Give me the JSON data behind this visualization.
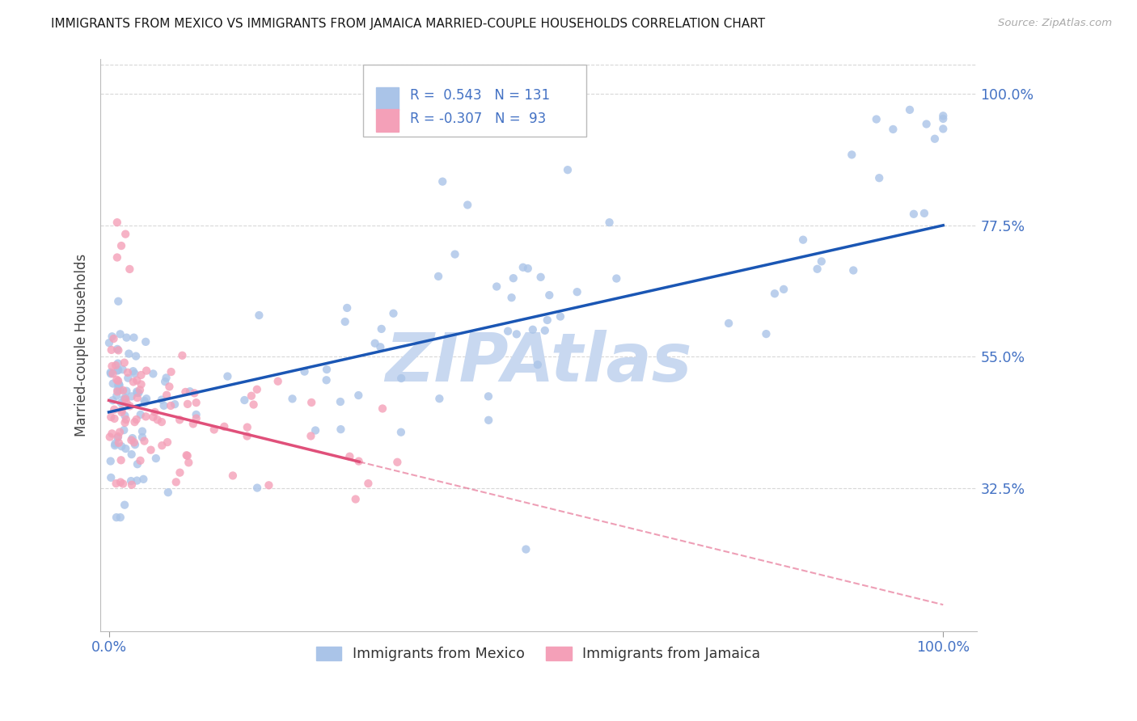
{
  "title": "IMMIGRANTS FROM MEXICO VS IMMIGRANTS FROM JAMAICA MARRIED-COUPLE HOUSEHOLDS CORRELATION CHART",
  "source": "Source: ZipAtlas.com",
  "ylabel": "Married-couple Households",
  "ytick_labels": [
    "100.0%",
    "77.5%",
    "55.0%",
    "32.5%"
  ],
  "ytick_values": [
    1.0,
    0.775,
    0.55,
    0.325
  ],
  "xtick_labels": [
    "0.0%",
    "100.0%"
  ],
  "xtick_values": [
    0.0,
    1.0
  ],
  "xlim": [
    -0.01,
    1.04
  ],
  "ylim": [
    0.08,
    1.06
  ],
  "r_mexico": 0.543,
  "n_mexico": 131,
  "r_jamaica": -0.307,
  "n_jamaica": 93,
  "color_mexico": "#aac4e8",
  "color_jamaica": "#f4a0b8",
  "color_line_mexico": "#1a56b4",
  "color_line_jamaica": "#e0507a",
  "color_axis_labels": "#4472c4",
  "color_title": "#1a1a1a",
  "watermark": "ZIPAtlas",
  "watermark_color": "#c8d8f0",
  "background_color": "#ffffff",
  "grid_color": "#d8d8d8",
  "legend_label_mexico": "Immigrants from Mexico",
  "legend_label_jamaica": "Immigrants from Jamaica",
  "line_mex_x0": 0.0,
  "line_mex_y0": 0.455,
  "line_mex_x1": 1.0,
  "line_mex_y1": 0.775,
  "line_jam_x0": 0.0,
  "line_jam_y0": 0.475,
  "line_jam_x1": 1.0,
  "line_jam_y1": 0.125,
  "line_jam_solid_end": 0.3
}
